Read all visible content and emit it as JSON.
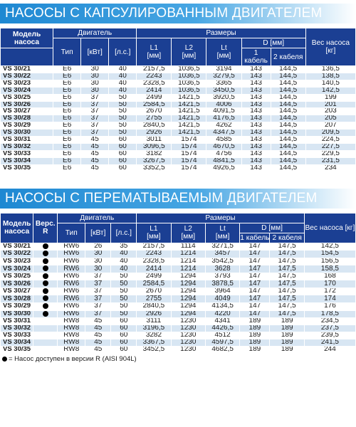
{
  "section1": {
    "title": "НАСОСЫ С КАПСУЛИРОВАННЫМ ДВИГАТЕЛЕМ",
    "headers": {
      "model": "Модель насоса",
      "engine": "Двигатель",
      "sizes": "Размеры",
      "type": "Тип",
      "kw": "[кВт]",
      "hp": "[л.с.]",
      "l1": "L1",
      "l2": "L2",
      "lt": "Lt",
      "unit_mm": "[мм]",
      "d": "D [мм]",
      "d1": "1 кабель",
      "d2": "2 кабеля",
      "weight": "Вес насоса [кг]"
    },
    "rows": [
      [
        "VS 30/21",
        "E6",
        "30",
        "40",
        "2157,5",
        "1036,5",
        "3194",
        "143",
        "144,5",
        "136,5"
      ],
      [
        "VS 30/22",
        "E6",
        "30",
        "40",
        "2243",
        "1036,5",
        "3279,5",
        "143",
        "144,5",
        "138,5"
      ],
      [
        "VS 30/23",
        "E6",
        "30",
        "40",
        "2328,5",
        "1036,5",
        "3365",
        "143",
        "144,5",
        "140,5"
      ],
      [
        "VS 30/24",
        "E6",
        "30",
        "40",
        "2414",
        "1036,5",
        "3450,5",
        "143",
        "144,5",
        "142,5"
      ],
      [
        "VS 30/25",
        "E6",
        "37",
        "50",
        "2499",
        "1421,5",
        "3920,5",
        "143",
        "144,5",
        "199"
      ],
      [
        "VS 30/26",
        "E6",
        "37",
        "50",
        "2584,5",
        "1421,5",
        "4006",
        "143",
        "144,5",
        "201"
      ],
      [
        "VS 30/27",
        "E6",
        "37",
        "50",
        "2670",
        "1421,5",
        "4091,5",
        "143",
        "144,5",
        "203"
      ],
      [
        "VS 30/28",
        "E6",
        "37",
        "50",
        "2755",
        "1421,5",
        "4176,5",
        "143",
        "144,5",
        "205"
      ],
      [
        "VS 30/29",
        "E6",
        "37",
        "50",
        "2840,5",
        "1421,5",
        "4262",
        "143",
        "144,5",
        "207"
      ],
      [
        "VS 30/30",
        "E6",
        "37",
        "50",
        "2926",
        "1421,5",
        "4347,5",
        "143",
        "144,5",
        "209,5"
      ],
      [
        "VS 30/31",
        "E6",
        "45",
        "60",
        "3011",
        "1574",
        "4585",
        "143",
        "144,5",
        "224,5"
      ],
      [
        "VS 30/32",
        "E6",
        "45",
        "60",
        "3096,5",
        "1574",
        "4670,5",
        "143",
        "144,5",
        "227,5"
      ],
      [
        "VS 30/33",
        "E6",
        "45",
        "60",
        "3182",
        "1574",
        "4756",
        "143",
        "144,5",
        "229,5"
      ],
      [
        "VS 30/34",
        "E6",
        "45",
        "60",
        "3267,5",
        "1574",
        "4841,5",
        "143",
        "144,5",
        "231,5"
      ],
      [
        "VS 30/35",
        "E6",
        "45",
        "60",
        "3352,5",
        "1574",
        "4926,5",
        "143",
        "144,5",
        "234"
      ]
    ]
  },
  "section2": {
    "title": "НАСОСЫ С ПЕРЕМАТЫВАЕМЫМ ДВИГАТЕЛЕМ",
    "headers": {
      "model": "Модель насоса",
      "version_r": "Верс. R",
      "engine": "Двигатель",
      "sizes": "Размеры",
      "type": "Тип",
      "kw": "[кВт]",
      "hp": "[л.с.]",
      "l1": "L1",
      "l2": "L2",
      "lt": "Lt",
      "unit_mm": "[мм]",
      "d": "D [мм]",
      "d1": "1 кабель",
      "d2": "2 кабеля",
      "weight": "Вес насоса [кг]"
    },
    "rows": [
      [
        "VS 30/21",
        "1",
        "RW6",
        "26",
        "35",
        "2157,5",
        "1114",
        "3271,5",
        "147",
        "147,5",
        "142,5"
      ],
      [
        "VS 30/22",
        "1",
        "RW6",
        "30",
        "40",
        "2243",
        "1214",
        "3457",
        "147",
        "147,5",
        "154,5"
      ],
      [
        "VS 30/23",
        "1",
        "RW6",
        "30",
        "40",
        "2328,5",
        "1214",
        "3542,5",
        "147",
        "147,5",
        "156,5"
      ],
      [
        "VS 30/24",
        "1",
        "RW6",
        "30",
        "40",
        "2414",
        "1214",
        "3628",
        "147",
        "147,5",
        "158,5"
      ],
      [
        "VS 30/25",
        "1",
        "RW6",
        "37",
        "50",
        "2499",
        "1294",
        "3793",
        "147",
        "147,5",
        "168"
      ],
      [
        "VS 30/26",
        "1",
        "RW6",
        "37",
        "50",
        "2584,5",
        "1294",
        "3878,5",
        "147",
        "147,5",
        "170"
      ],
      [
        "VS 30/27",
        "1",
        "RW6",
        "37",
        "50",
        "2670",
        "1294",
        "3964",
        "147",
        "147,5",
        "172"
      ],
      [
        "VS 30/28",
        "1",
        "RW6",
        "37",
        "50",
        "2755",
        "1294",
        "4049",
        "147",
        "147,5",
        "174"
      ],
      [
        "VS 30/29",
        "1",
        "RW6",
        "37",
        "50",
        "2840,5",
        "1294",
        "4134,5",
        "147",
        "147,5",
        "176"
      ],
      [
        "VS 30/30",
        "1",
        "RW6",
        "37",
        "50",
        "2926",
        "1294",
        "4220",
        "147",
        "147,5",
        "178,5"
      ],
      [
        "VS 30/31",
        "0",
        "RW8",
        "45",
        "60",
        "3111",
        "1230",
        "4341",
        "189",
        "189",
        "234,5"
      ],
      [
        "VS 30/32",
        "0",
        "RW8",
        "45",
        "60",
        "3196,5",
        "1230",
        "4426,5",
        "189",
        "189",
        "237,5"
      ],
      [
        "VS 30/33",
        "0",
        "RW8",
        "45",
        "60",
        "3282",
        "1230",
        "4512",
        "189",
        "189",
        "239,5"
      ],
      [
        "VS 30/34",
        "0",
        "RW8",
        "45",
        "60",
        "3367,5",
        "1230",
        "4597,5",
        "189",
        "189",
        "241,5"
      ],
      [
        "VS 30/35",
        "0",
        "RW8",
        "45",
        "60",
        "3452,5",
        "1230",
        "4682,5",
        "189",
        "189",
        "244"
      ]
    ],
    "legend": "= Насос доступен в версии R (AISI 904L)"
  },
  "colors": {
    "header_bg": "#1b3f93",
    "row_alt_bg": "#d8e6f3",
    "title_gradient_start": "#1e88d2"
  }
}
